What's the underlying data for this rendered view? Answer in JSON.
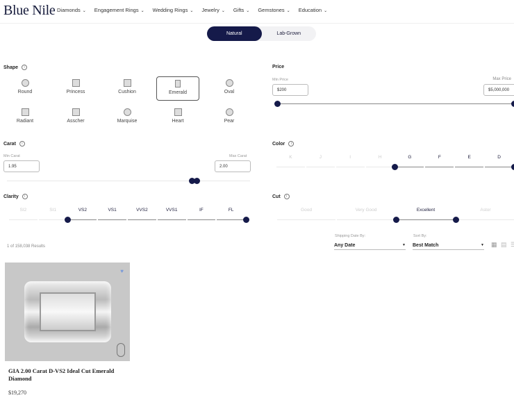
{
  "brand": "Blue Nile",
  "nav": [
    "Diamonds",
    "Engagement Rings",
    "Wedding Rings",
    "Jewelry",
    "Gifts",
    "Gemstones",
    "Education"
  ],
  "toggle": {
    "natural": "Natural",
    "lab": "Lab-Grown",
    "selected": "Natural"
  },
  "shape": {
    "title": "Shape",
    "selected": "Emerald",
    "items": [
      "Round",
      "Princess",
      "Cushion",
      "Emerald",
      "Oval",
      "Radiant",
      "Asscher",
      "Marquise",
      "Heart",
      "Pear"
    ]
  },
  "carat": {
    "title": "Carat",
    "min_label": "Min Carat",
    "max_label": "Max Carat",
    "min": "1.95",
    "max": "2.00"
  },
  "price": {
    "title": "Price",
    "min_label": "Min Price",
    "max_label": "Max Price",
    "min": "$200",
    "max": "$5,000,000"
  },
  "color": {
    "title": "Color",
    "grades": [
      "K",
      "J",
      "I",
      "H",
      "G",
      "F",
      "E",
      "D"
    ],
    "selected_from": "G",
    "selected_to": "D"
  },
  "clarity": {
    "title": "Clarity",
    "grades": [
      "SI2",
      "SI1",
      "VS2",
      "VS1",
      "VVS2",
      "VVS1",
      "IF",
      "FL"
    ],
    "selected_from": "VS2",
    "selected_to": "FL"
  },
  "cut": {
    "title": "Cut",
    "grades": [
      "Good",
      "Very Good",
      "Excellent",
      "Astor"
    ],
    "selected_from": "Excellent",
    "selected_to": "Excellent"
  },
  "results": {
    "count_text": "1 of 158,038 Results"
  },
  "shipping": {
    "label": "Shipping Date By:",
    "value": "Any Date"
  },
  "sort": {
    "label": "Sort By:",
    "value": "Best Match"
  },
  "product": {
    "title": "GIA 2.00 Carat D-VS2 Ideal Cut Emerald Diamond",
    "price": "$19,270"
  },
  "accent": "#151a4a"
}
